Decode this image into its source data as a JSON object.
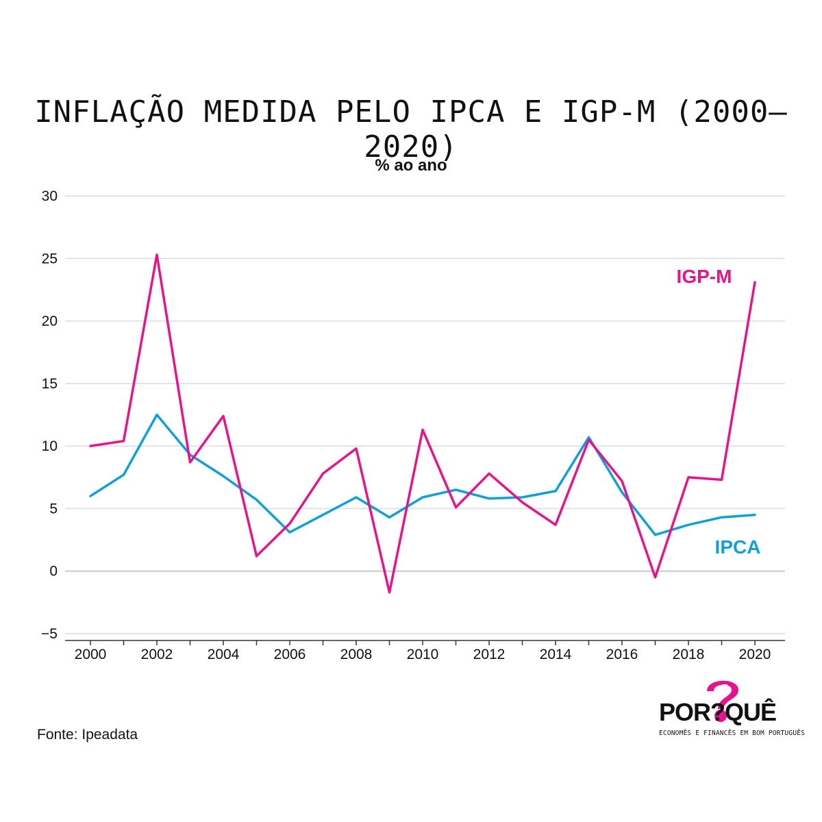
{
  "colors": {
    "igpm": "#e8128c",
    "ipca": "#0fa0dc",
    "grid": "#dcdcdc",
    "zero": "#c8c8c8",
    "text": "#111111"
  },
  "chart_data": {
    "type": "line",
    "title": "INFLAÇÃO MEDIDA PELO IPCA E IGP-M (2000–2020)",
    "subtitle": "% ao ano",
    "xlabel": "",
    "ylabel": "",
    "x": [
      2000,
      2001,
      2002,
      2003,
      2004,
      2005,
      2006,
      2007,
      2008,
      2009,
      2010,
      2011,
      2012,
      2013,
      2014,
      2015,
      2016,
      2017,
      2018,
      2019,
      2020
    ],
    "x_ticks": [
      "2000",
      "2002",
      "2004",
      "2006",
      "2008",
      "2010",
      "2012",
      "2014",
      "2016",
      "2018",
      "2020"
    ],
    "y_ticks": [
      "30",
      "25",
      "20",
      "15",
      "10",
      "5",
      "0",
      "−5"
    ],
    "ylim": [
      -5,
      30
    ],
    "grid": true,
    "series": [
      {
        "name": "IGP-M",
        "color": "#e8128c",
        "values": [
          10.0,
          10.4,
          25.3,
          8.7,
          12.4,
          1.2,
          3.8,
          7.8,
          9.8,
          -1.7,
          11.3,
          5.1,
          7.8,
          5.5,
          3.7,
          10.5,
          7.2,
          -0.5,
          7.5,
          7.3,
          23.1
        ]
      },
      {
        "name": "IPCA",
        "color": "#0fa0dc",
        "values": [
          6.0,
          7.7,
          12.5,
          9.3,
          7.6,
          5.7,
          3.1,
          4.5,
          5.9,
          4.3,
          5.9,
          6.5,
          5.8,
          5.9,
          6.4,
          10.7,
          6.3,
          2.9,
          3.7,
          4.3,
          4.5
        ]
      }
    ]
  },
  "source": "Fonte: Ipeadata",
  "logo": {
    "word": "POR?QUÊ",
    "tagline": "ECONOMÊS E FINANCÊS EM BOM PORTUGUÊS",
    "icon": "question-mark-piggy-icon"
  }
}
